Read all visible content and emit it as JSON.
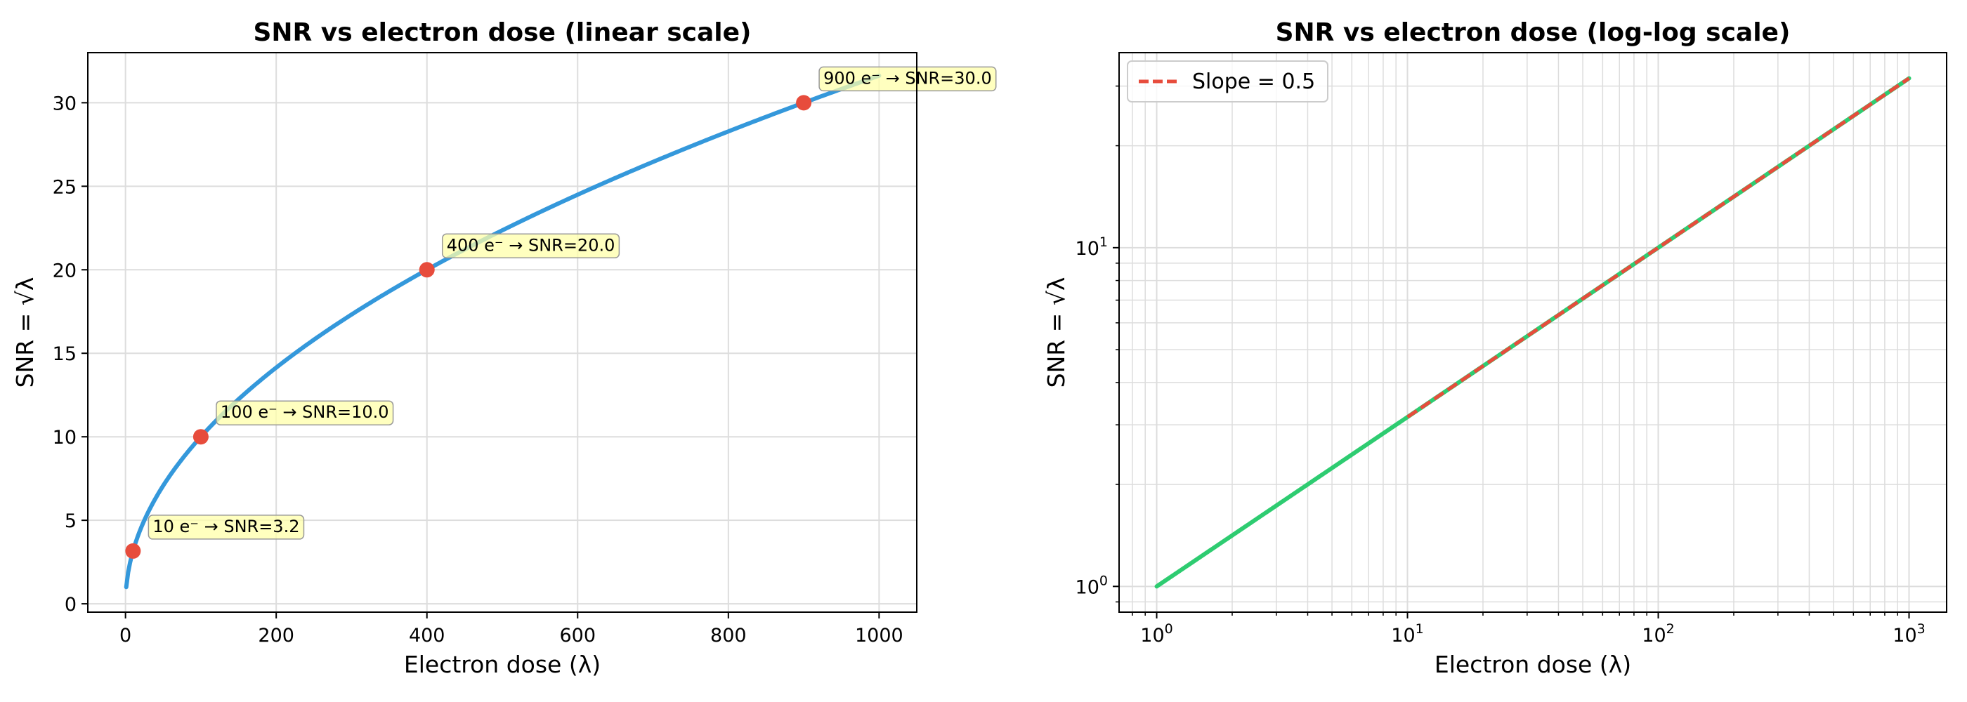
{
  "chart_data": [
    {
      "type": "line",
      "title": "SNR vs electron dose (linear scale)",
      "xlabel": "Electron dose (λ)",
      "ylabel": "SNR = √λ",
      "xlim": [
        -50,
        1050
      ],
      "ylim": [
        -0.5,
        33
      ],
      "x_scale": "linear",
      "y_scale": "linear",
      "grid": true,
      "xticks": [
        0,
        200,
        400,
        600,
        800,
        1000
      ],
      "xtick_labels": [
        "0",
        "200",
        "400",
        "600",
        "800",
        "1000"
      ],
      "yticks": [
        0,
        5,
        10,
        15,
        20,
        25,
        30
      ],
      "ytick_labels": [
        "0",
        "5",
        "10",
        "15",
        "20",
        "25",
        "30"
      ],
      "series": [
        {
          "function": "sqrt",
          "x_range": [
            1,
            1000
          ],
          "color": "#3498db"
        }
      ],
      "points": [
        {
          "x": 10,
          "y": 3.16,
          "label": "10 e⁻ → SNR=3.2"
        },
        {
          "x": 100,
          "y": 10.0,
          "label": "100 e⁻ → SNR=10.0"
        },
        {
          "x": 400,
          "y": 20.0,
          "label": "400 e⁻ → SNR=20.0"
        },
        {
          "x": 900,
          "y": 30.0,
          "label": "900 e⁻ → SNR=30.0"
        }
      ],
      "point_color": "#e74c3c",
      "annotation_bg": "#ffffaa"
    },
    {
      "type": "line",
      "title": "SNR vs electron dose (log-log scale)",
      "xlabel": "Electron dose (λ)",
      "ylabel": "SNR = √λ",
      "xlim": [
        0.708,
        1412
      ],
      "ylim": [
        0.8395,
        37.65
      ],
      "x_scale": "log",
      "y_scale": "log",
      "grid": true,
      "legend_position": "upper-left",
      "xticks": [
        1,
        10,
        100,
        1000
      ],
      "xtick_labels": [
        {
          "base": "10",
          "exp": "0"
        },
        {
          "base": "10",
          "exp": "1"
        },
        {
          "base": "10",
          "exp": "2"
        },
        {
          "base": "10",
          "exp": "3"
        }
      ],
      "yticks": [
        1,
        10
      ],
      "ytick_labels": [
        {
          "base": "10",
          "exp": "0"
        },
        {
          "base": "10",
          "exp": "1"
        }
      ],
      "series": [
        {
          "function": "sqrt",
          "x_range": [
            1,
            1000
          ],
          "color": "#2ecc71"
        },
        {
          "name": "Slope = 0.5",
          "function": "sqrt",
          "x_range": [
            10,
            1000
          ],
          "color": "#e74c3c",
          "dashed": true
        }
      ]
    }
  ]
}
